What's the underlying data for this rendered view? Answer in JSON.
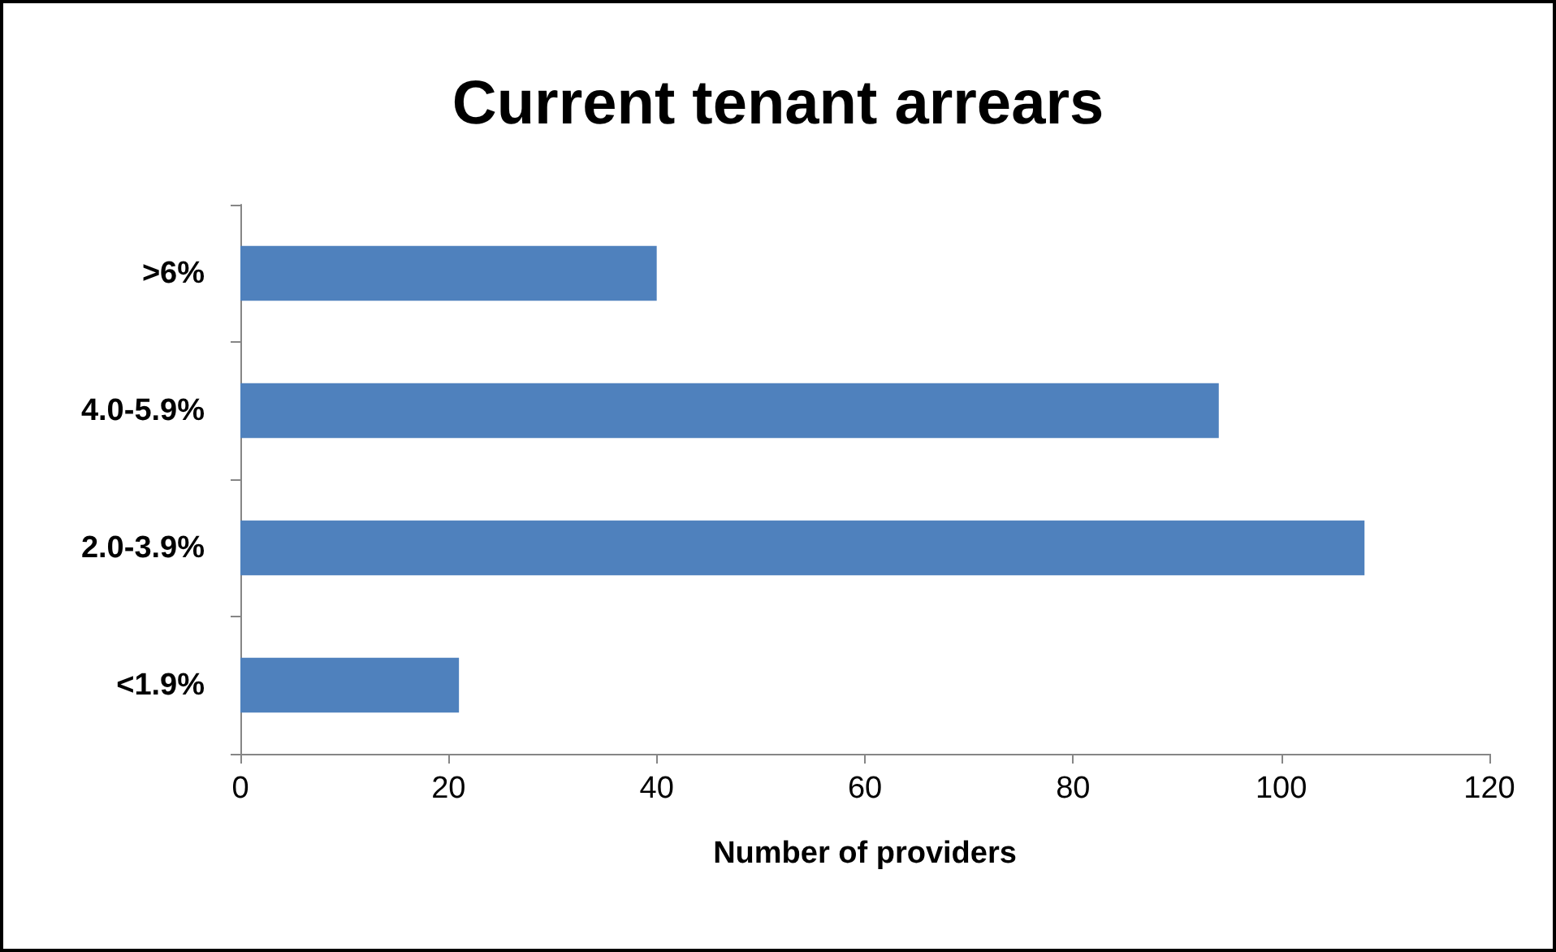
{
  "chart_data": {
    "type": "bar",
    "title": "Current tenant arrears",
    "xlabel": "Number of providers",
    "orientation": "horizontal",
    "categories": [
      ">6%",
      "4.0-5.9%",
      "2.0-3.9%",
      "<1.9%"
    ],
    "values": [
      40,
      94,
      108,
      21
    ],
    "color": "#4f81bd",
    "xlim": [
      0,
      120
    ],
    "xticks": [
      0,
      20,
      40,
      60,
      80,
      100,
      120
    ],
    "grid": false
  }
}
